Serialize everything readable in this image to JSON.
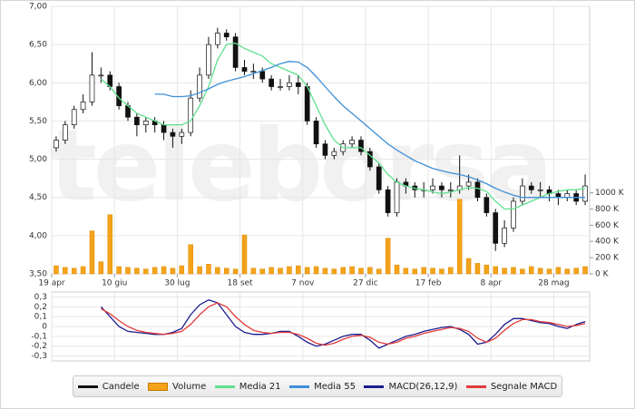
{
  "chart_data": [
    {
      "type": "candlestick",
      "watermark": "teleborsa",
      "categories": [
        "19 apr",
        null,
        null,
        null,
        null,
        null,
        null,
        "10 giu",
        null,
        null,
        null,
        null,
        null,
        null,
        "30 lug",
        null,
        null,
        null,
        null,
        null,
        null,
        "18 set",
        null,
        null,
        null,
        null,
        null,
        null,
        "7 nov",
        null,
        null,
        null,
        null,
        null,
        null,
        "27 dic",
        null,
        null,
        null,
        null,
        null,
        null,
        "17 feb",
        null,
        null,
        null,
        null,
        null,
        null,
        "8 apr",
        null,
        null,
        null,
        null,
        null,
        null,
        "28 mag",
        null,
        null,
        null
      ],
      "ylim": [
        3.5,
        7.0
      ],
      "yticks": [
        {
          "value": 3.5,
          "label": "3,50"
        },
        {
          "value": 4.0,
          "label": "4,00"
        },
        {
          "value": 4.5,
          "label": "4,50"
        },
        {
          "value": 5.0,
          "label": "5,00"
        },
        {
          "value": 5.5,
          "label": "5,50"
        },
        {
          "value": 6.0,
          "label": "6,00"
        },
        {
          "value": 6.5,
          "label": "6,50"
        },
        {
          "value": 7.0,
          "label": "7,00"
        }
      ],
      "y2lim": [
        0,
        3300
      ],
      "y2ticks": [
        {
          "value": 0,
          "label": "0 K"
        },
        {
          "value": 200,
          "label": "200 K"
        },
        {
          "value": 400,
          "label": "400 K"
        },
        {
          "value": 600,
          "label": "600 K"
        },
        {
          "value": 800,
          "label": "800 K"
        },
        {
          "value": 1000,
          "label": "1000 K"
        }
      ],
      "grid": true,
      "candles": {
        "name": "Candele",
        "color": "#111111",
        "up_color": "#ffffff",
        "open": [
          5.15,
          5.25,
          5.45,
          5.65,
          5.75,
          6.1,
          6.1,
          5.95,
          5.7,
          5.55,
          5.45,
          5.5,
          5.45,
          5.35,
          5.3,
          5.35,
          5.8,
          6.1,
          6.5,
          6.65,
          6.6,
          6.2,
          6.15,
          6.15,
          6.05,
          5.95,
          5.95,
          6.0,
          5.95,
          5.5,
          5.2,
          5.05,
          5.1,
          5.2,
          5.25,
          5.1,
          4.9,
          4.6,
          4.3,
          4.7,
          4.65,
          4.6,
          4.6,
          4.65,
          4.6,
          4.6,
          4.65,
          4.7,
          4.5,
          4.3,
          3.9,
          4.1,
          4.45,
          4.65,
          4.6,
          4.6,
          4.55,
          4.5,
          4.55,
          4.45
        ],
        "high": [
          5.3,
          5.5,
          5.7,
          5.85,
          6.4,
          6.2,
          6.15,
          6.0,
          5.75,
          5.6,
          5.55,
          5.55,
          5.5,
          5.4,
          5.4,
          5.9,
          6.2,
          6.6,
          6.72,
          6.7,
          6.65,
          6.3,
          6.25,
          6.2,
          6.1,
          6.05,
          6.1,
          6.1,
          6.0,
          5.55,
          5.25,
          5.15,
          5.25,
          5.3,
          5.3,
          5.15,
          4.95,
          4.65,
          4.75,
          4.75,
          4.7,
          4.7,
          4.75,
          4.7,
          4.7,
          5.05,
          4.8,
          4.75,
          4.55,
          4.35,
          4.2,
          4.5,
          4.75,
          4.7,
          4.7,
          4.65,
          4.6,
          4.6,
          4.6,
          4.8
        ],
        "low": [
          5.1,
          5.2,
          5.4,
          5.6,
          5.7,
          6.0,
          5.9,
          5.65,
          5.5,
          5.3,
          5.35,
          5.35,
          5.25,
          5.15,
          5.2,
          5.3,
          5.75,
          6.05,
          6.45,
          6.55,
          6.15,
          6.1,
          6.05,
          6.0,
          5.9,
          5.9,
          5.9,
          5.85,
          5.45,
          5.15,
          5.0,
          5.0,
          5.05,
          5.15,
          5.05,
          4.85,
          4.55,
          4.25,
          4.25,
          4.55,
          4.5,
          4.5,
          4.55,
          4.5,
          4.5,
          4.55,
          4.6,
          4.45,
          4.25,
          3.8,
          3.85,
          4.05,
          4.4,
          4.55,
          4.5,
          4.45,
          4.4,
          4.45,
          4.4,
          4.4
        ],
        "close": [
          5.25,
          5.45,
          5.65,
          5.75,
          6.1,
          6.1,
          5.95,
          5.7,
          5.55,
          5.45,
          5.5,
          5.45,
          5.35,
          5.3,
          5.35,
          5.8,
          6.1,
          6.5,
          6.65,
          6.6,
          6.2,
          6.15,
          6.15,
          6.05,
          5.95,
          5.95,
          6.0,
          5.95,
          5.5,
          5.2,
          5.05,
          5.1,
          5.2,
          5.25,
          5.1,
          4.9,
          4.6,
          4.3,
          4.7,
          4.65,
          4.6,
          4.6,
          4.65,
          4.6,
          4.6,
          4.65,
          4.7,
          4.5,
          4.3,
          3.9,
          4.1,
          4.45,
          4.65,
          4.6,
          4.6,
          4.55,
          4.5,
          4.55,
          4.45,
          4.65
        ]
      },
      "series": [
        {
          "name": "Volume",
          "type": "bar",
          "axis": "y2",
          "color": "#f5a31a",
          "values": [
            100,
            80,
            70,
            90,
            530,
            150,
            730,
            90,
            80,
            70,
            60,
            80,
            90,
            70,
            100,
            360,
            90,
            120,
            80,
            70,
            60,
            480,
            70,
            60,
            80,
            70,
            90,
            100,
            80,
            90,
            70,
            60,
            80,
            90,
            70,
            80,
            60,
            440,
            110,
            70,
            60,
            80,
            70,
            60,
            80,
            920,
            190,
            130,
            110,
            90,
            70,
            80,
            60,
            90,
            70,
            60,
            80,
            60,
            70,
            90
          ]
        },
        {
          "name": "Media 21",
          "type": "line",
          "color": "#5fe08f",
          "values": [
            null,
            null,
            null,
            null,
            null,
            6.05,
            5.95,
            5.8,
            5.7,
            5.6,
            5.55,
            5.5,
            5.45,
            5.45,
            5.45,
            5.5,
            5.7,
            5.95,
            6.3,
            6.5,
            6.52,
            6.45,
            6.4,
            6.35,
            6.25,
            6.2,
            6.15,
            6.1,
            5.95,
            5.7,
            5.45,
            5.25,
            5.15,
            5.15,
            5.15,
            5.05,
            4.95,
            4.8,
            4.7,
            4.65,
            4.62,
            4.6,
            4.57,
            4.55,
            4.57,
            4.6,
            4.63,
            4.62,
            4.58,
            4.45,
            4.35,
            4.35,
            4.4,
            4.45,
            4.5,
            4.55,
            4.58,
            4.6,
            4.6,
            4.62
          ]
        },
        {
          "name": "Media 55",
          "type": "line",
          "color": "#3d8fd8",
          "values": [
            null,
            null,
            null,
            null,
            null,
            null,
            null,
            null,
            null,
            null,
            null,
            5.85,
            5.85,
            5.82,
            5.82,
            5.83,
            5.87,
            5.92,
            5.98,
            6.02,
            6.05,
            6.08,
            6.12,
            6.16,
            6.2,
            6.25,
            6.28,
            6.27,
            6.2,
            6.08,
            5.95,
            5.82,
            5.7,
            5.6,
            5.5,
            5.4,
            5.3,
            5.2,
            5.12,
            5.05,
            4.98,
            4.93,
            4.88,
            4.85,
            4.82,
            4.8,
            4.77,
            4.73,
            4.68,
            4.62,
            4.57,
            4.53,
            4.5,
            4.5,
            4.5,
            4.5,
            4.5,
            4.5,
            4.5,
            4.5
          ]
        }
      ]
    },
    {
      "type": "line",
      "ylim": [
        -0.35,
        0.35
      ],
      "yticks": [
        {
          "value": -0.3,
          "label": "-0,3"
        },
        {
          "value": -0.2,
          "label": "-0,2"
        },
        {
          "value": -0.1,
          "label": "-0,1"
        },
        0,
        {
          "value": 0.1,
          "label": "0,1"
        },
        {
          "value": 0.2,
          "label": "0,2"
        },
        {
          "value": 0.3,
          "label": "0,3"
        }
      ],
      "grid": true,
      "series": [
        {
          "name": "MACD(26,12,9)",
          "type": "line",
          "color": "#1c1c8f",
          "values": [
            null,
            null,
            null,
            null,
            null,
            0.2,
            0.1,
            0.0,
            -0.05,
            -0.06,
            -0.07,
            -0.08,
            -0.08,
            -0.06,
            -0.02,
            0.12,
            0.22,
            0.27,
            0.24,
            0.12,
            0.0,
            -0.06,
            -0.08,
            -0.08,
            -0.07,
            -0.05,
            -0.05,
            -0.1,
            -0.16,
            -0.2,
            -0.18,
            -0.14,
            -0.1,
            -0.08,
            -0.08,
            -0.14,
            -0.22,
            -0.18,
            -0.14,
            -0.1,
            -0.08,
            -0.05,
            -0.03,
            -0.01,
            0.0,
            -0.03,
            -0.08,
            -0.18,
            -0.16,
            -0.08,
            0.02,
            0.08,
            0.08,
            0.06,
            0.04,
            0.03,
            0.0,
            -0.02,
            0.02,
            0.05
          ]
        },
        {
          "name": "Segnale MACD",
          "type": "line",
          "color": "#e23a3a",
          "values": [
            null,
            null,
            null,
            null,
            null,
            0.18,
            0.13,
            0.06,
            0.0,
            -0.04,
            -0.06,
            -0.07,
            -0.08,
            -0.07,
            -0.05,
            0.02,
            0.12,
            0.2,
            0.24,
            0.2,
            0.1,
            0.02,
            -0.04,
            -0.06,
            -0.07,
            -0.06,
            -0.06,
            -0.08,
            -0.12,
            -0.17,
            -0.19,
            -0.17,
            -0.13,
            -0.1,
            -0.09,
            -0.11,
            -0.16,
            -0.18,
            -0.16,
            -0.12,
            -0.1,
            -0.07,
            -0.05,
            -0.03,
            -0.01,
            -0.02,
            -0.05,
            -0.12,
            -0.16,
            -0.12,
            -0.04,
            0.03,
            0.07,
            0.07,
            0.05,
            0.04,
            0.02,
            0.0,
            0.01,
            0.03
          ]
        }
      ]
    }
  ]
}
